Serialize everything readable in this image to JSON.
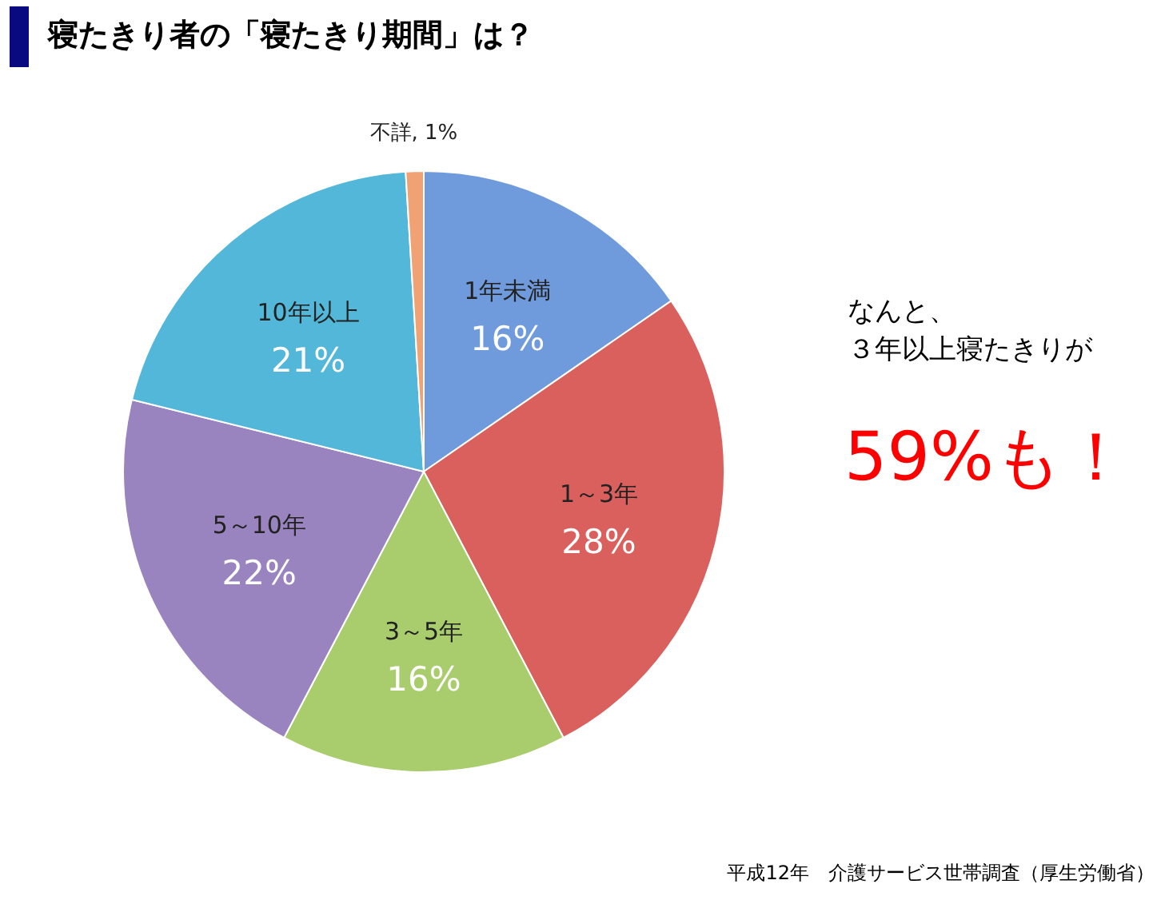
{
  "chart_data": {
    "type": "pie",
    "title": "寝たきり者の「寝たきり期間」は？",
    "categories": [
      "1年未満",
      "1～3年",
      "3～5年",
      "5～10年",
      "10年以上",
      "不詳"
    ],
    "values": [
      16,
      28,
      16,
      22,
      21,
      1
    ],
    "value_labels": [
      "16%",
      "28%",
      "16%",
      "22%",
      "21%",
      "1%"
    ],
    "colors": [
      "#6f9bdc",
      "#d9605d",
      "#a9cd6c",
      "#9a84c0",
      "#52b7d8",
      "#f0a274"
    ],
    "annotations": [
      "なんと、",
      "３年以上寝たきりが",
      "59%も！",
      "平成12年　介護サービス世帯調査（厚生労働省）"
    ]
  }
}
